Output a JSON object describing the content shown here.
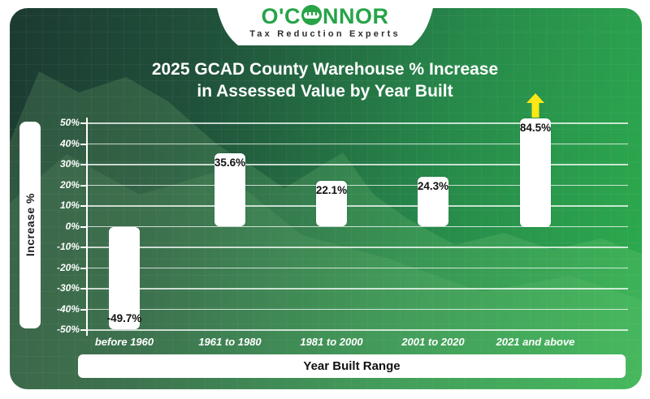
{
  "logo": {
    "part1": "O'C",
    "part2": "NNOR",
    "tagline": "Tax Reduction Experts",
    "brand_green": "#27a448"
  },
  "chart_data": {
    "type": "bar",
    "title_line1": "2025 GCAD County Warehouse % Increase",
    "title_line2": "in Assessed Value by Year Built",
    "ylabel": "Increase %",
    "xlabel": "Year Built Range",
    "categories": [
      "before 1960",
      "1961 to 1980",
      "1981 to 2000",
      "2001 to 2020",
      "2021 and above"
    ],
    "values": [
      -49.7,
      35.6,
      22.1,
      24.3,
      84.5
    ],
    "value_labels": [
      "-49.7%",
      "35.6%",
      "22.1%",
      "24.3%",
      "84.5%"
    ],
    "ylim": [
      -50,
      50
    ],
    "ytick_labels": [
      "50%",
      "40%",
      "30%",
      "20%",
      "10%",
      "0%",
      "-10%",
      "-20%",
      "-30%",
      "-40%",
      "-50%"
    ],
    "grid": true,
    "legend": "none",
    "bar_color": "#ffffff",
    "value_label_color": "#111111",
    "overflow_arrow_color": "#ffe715",
    "background_gradient": [
      "#1c3a31",
      "#2dad4e"
    ]
  }
}
